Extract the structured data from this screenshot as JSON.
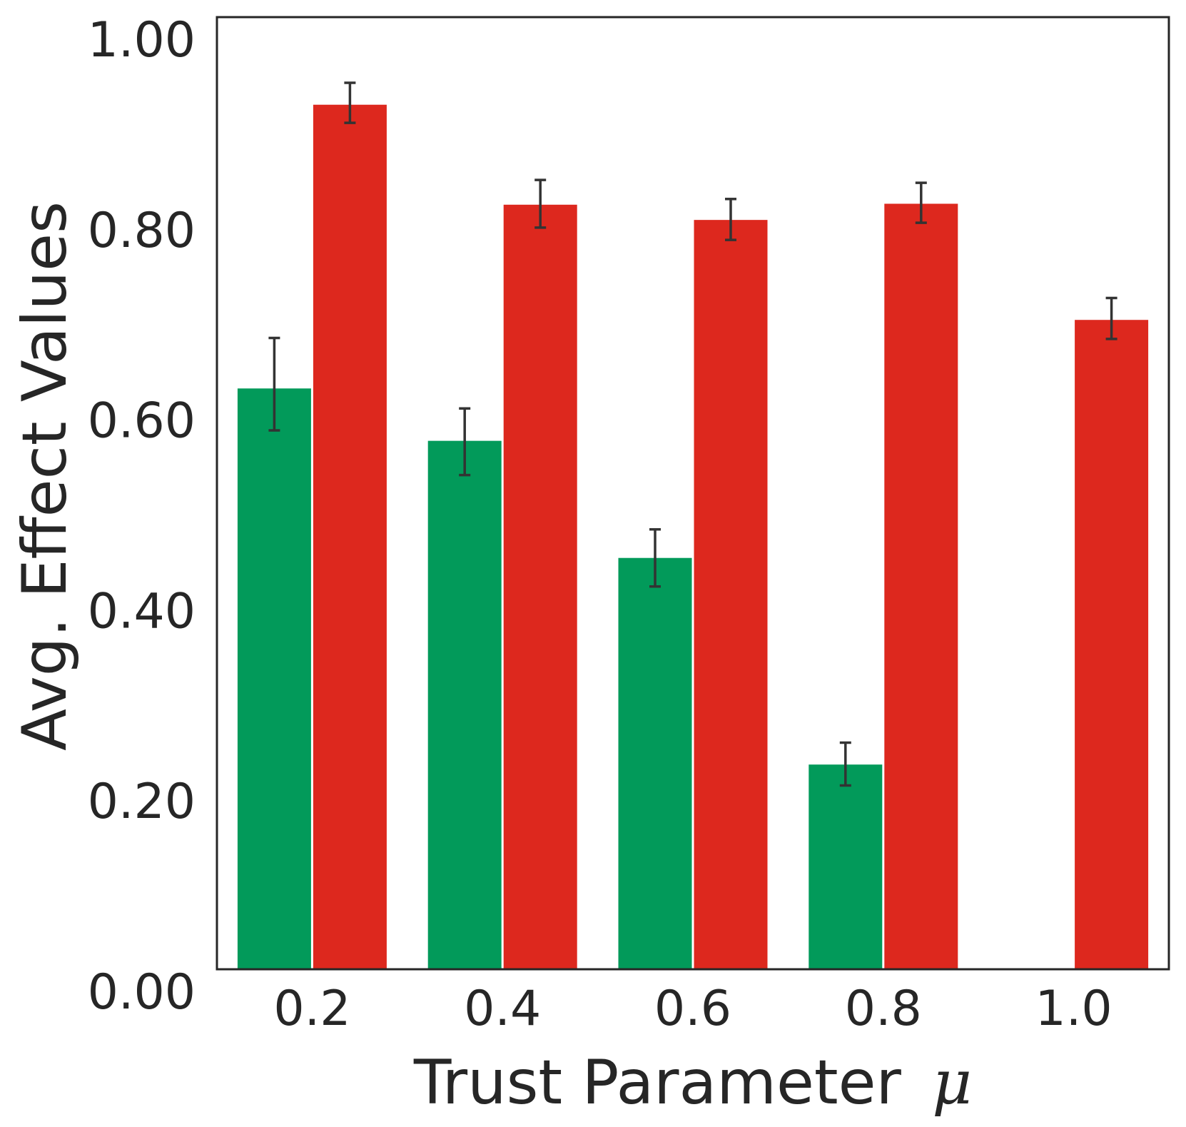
{
  "chart_data": {
    "type": "bar",
    "title": "",
    "xlabel": "Trust Parameter",
    "xlabel_symbol": "μ",
    "ylabel": "Avg. Effect Values",
    "categories": [
      "0.2",
      "0.4",
      "0.6",
      "0.8",
      "1.0"
    ],
    "ylim": [
      0.0,
      1.0
    ],
    "yticks": [
      "0.00",
      "0.20",
      "0.40",
      "0.60",
      "0.80",
      "1.00"
    ],
    "grid": false,
    "legend": "none",
    "series": [
      {
        "color": "#029a5a",
        "values": [
          0.61,
          0.555,
          0.432,
          0.215,
          0.0
        ],
        "err_low": [
          0.566,
          0.519,
          0.402,
          0.193,
          null
        ],
        "err_high": [
          0.663,
          0.589,
          0.462,
          0.238,
          null
        ]
      },
      {
        "color": "#dd281e",
        "values": [
          0.908,
          0.803,
          0.787,
          0.804,
          0.682
        ],
        "err_low": [
          0.889,
          0.779,
          0.766,
          0.784,
          0.662
        ],
        "err_high": [
          0.931,
          0.829,
          0.809,
          0.826,
          0.705
        ]
      }
    ],
    "errorbar_color": "#333333",
    "axis_color": "#262626"
  }
}
